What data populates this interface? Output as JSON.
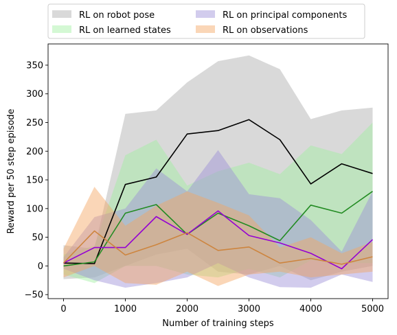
{
  "chart_data": {
    "type": "line",
    "xlabel": "Number of training steps",
    "ylabel": "Reward per 50 step episode",
    "xlim": [
      -250,
      5250
    ],
    "ylim": [
      -57,
      387
    ],
    "xticks": [
      0,
      1000,
      2000,
      3000,
      4000,
      5000
    ],
    "yticks": [
      -50,
      0,
      50,
      100,
      150,
      200,
      250,
      300,
      350
    ],
    "x": [
      0,
      500,
      1000,
      1500,
      2000,
      2500,
      3000,
      3500,
      4000,
      4500,
      5000
    ],
    "grid": false,
    "legend_position": "top, above plot, 2 columns",
    "series": [
      {
        "name": "RL on robot pose",
        "line_color": "#000000",
        "band_color": "#aaaaaa",
        "mean": [
          5,
          4,
          142,
          155,
          230,
          236,
          255,
          220,
          143,
          178,
          161
        ],
        "lower": [
          -23,
          -20,
          0,
          20,
          30,
          -10,
          -15,
          0,
          -25,
          -10,
          0
        ],
        "upper": [
          36,
          30,
          265,
          271,
          320,
          357,
          367,
          343,
          256,
          271,
          276
        ]
      },
      {
        "name": "RL on learned states",
        "line_color": "#228b22",
        "band_color": "#a0f0a0",
        "mean": [
          0,
          7,
          92,
          107,
          55,
          92,
          70,
          44,
          106,
          92,
          130
        ],
        "lower": [
          -15,
          -30,
          0,
          0,
          -15,
          -20,
          -5,
          -20,
          10,
          5,
          5
        ],
        "upper": [
          20,
          35,
          193,
          220,
          140,
          165,
          180,
          160,
          210,
          195,
          250
        ]
      },
      {
        "name": "RL on principal components",
        "line_color": "#9400d3",
        "band_color": "#9b8fd8",
        "mean": [
          5,
          32,
          32,
          86,
          55,
          96,
          53,
          40,
          22,
          -5,
          46
        ],
        "lower": [
          -5,
          -25,
          -38,
          -30,
          -20,
          5,
          -20,
          -37,
          -38,
          -15,
          -28
        ],
        "upper": [
          15,
          85,
          100,
          170,
          130,
          202,
          125,
          118,
          80,
          25,
          130
        ]
      },
      {
        "name": "RL on observations",
        "line_color": "#cd853f",
        "band_color": "#f4a460",
        "mean": [
          5,
          61,
          19,
          37,
          58,
          27,
          33,
          5,
          13,
          3,
          16
        ],
        "lower": [
          -20,
          0,
          -30,
          -33,
          -10,
          -35,
          -15,
          -10,
          -20,
          -15,
          -10
        ],
        "upper": [
          30,
          138,
          70,
          105,
          130,
          110,
          88,
          32,
          50,
          22,
          42
        ]
      }
    ]
  }
}
